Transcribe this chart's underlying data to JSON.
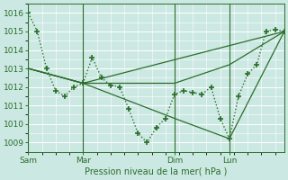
{
  "xlabel": "Pression niveau de la mer( hPa )",
  "bg_color": "#cce8e3",
  "grid_color": "#b8ddd8",
  "line_color": "#2a6e2a",
  "ylim": [
    1008.5,
    1016.5
  ],
  "yticks": [
    1009,
    1010,
    1011,
    1012,
    1013,
    1014,
    1015,
    1016
  ],
  "xtick_labels": [
    "Sam",
    "Mar",
    "Dim",
    "Lun"
  ],
  "xtick_positions": [
    0,
    36,
    96,
    132
  ],
  "total_hours": 168,
  "series_main": {
    "x": [
      0,
      6,
      12,
      18,
      24,
      30,
      36,
      42,
      48,
      54,
      60,
      66,
      72,
      78,
      84,
      90,
      96,
      102,
      108,
      114,
      120,
      126,
      132,
      138,
      144,
      150,
      156,
      162,
      168
    ],
    "y": [
      1016,
      1015,
      1013,
      1011.8,
      1011.5,
      1012.0,
      1012.2,
      1013.6,
      1012.5,
      1012.1,
      1012.0,
      1010.8,
      1009.5,
      1009.0,
      1009.8,
      1010.3,
      1011.6,
      1011.8,
      1011.7,
      1011.6,
      1012.0,
      1010.3,
      1009.2,
      1011.5,
      1012.7,
      1013.2,
      1015.0,
      1015.1,
      1015.0
    ]
  },
  "series_lines": [
    {
      "x": [
        0,
        36,
        96,
        132,
        168
      ],
      "y": [
        1013,
        1012.2,
        1012.2,
        1013.2,
        1015.0
      ]
    },
    {
      "x": [
        0,
        36,
        96,
        132,
        168
      ],
      "y": [
        1013,
        1012.2,
        1010.3,
        1009.2,
        1015.0
      ]
    },
    {
      "x": [
        0,
        36,
        168
      ],
      "y": [
        1013,
        1012.2,
        1015.0
      ]
    }
  ]
}
